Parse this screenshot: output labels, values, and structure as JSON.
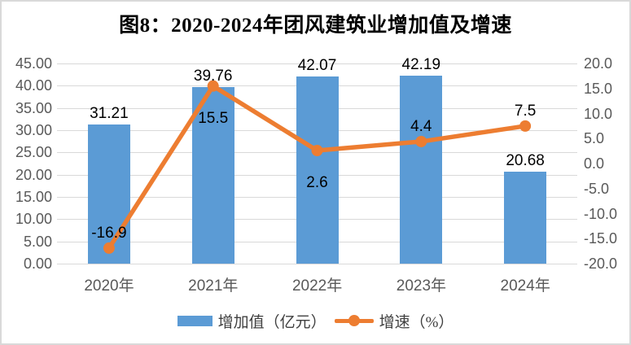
{
  "title": "图8：2020-2024年团风建筑业增加值及增速",
  "chart_data": {
    "type": "combo-bar-line",
    "categories": [
      "2020年",
      "2021年",
      "2022年",
      "2023年",
      "2024年"
    ],
    "series": [
      {
        "name": "增加值（亿元）",
        "chart_type": "bar",
        "axis": "left",
        "color": "#5B9BD5",
        "values": [
          31.21,
          39.76,
          42.07,
          42.19,
          20.68
        ],
        "labels": [
          "31.21",
          "39.76",
          "42.07",
          "42.19",
          "20.68"
        ]
      },
      {
        "name": "增速（%）",
        "chart_type": "line",
        "axis": "right",
        "color": "#ED7D31",
        "values": [
          -16.9,
          15.5,
          2.6,
          4.4,
          7.5
        ],
        "labels": [
          "-16.9",
          "15.5",
          "2.6",
          "4.4",
          "7.5"
        ],
        "label_placement": [
          "above",
          "below",
          "below",
          "above",
          "above"
        ]
      }
    ],
    "left_axis": {
      "min": 0,
      "max": 45,
      "step": 5,
      "ticks": [
        "45.00",
        "40.00",
        "35.00",
        "30.00",
        "25.00",
        "20.00",
        "15.00",
        "10.00",
        "5.00",
        "0.00"
      ]
    },
    "right_axis": {
      "min": -20,
      "max": 20,
      "step": 5,
      "ticks": [
        "20.0",
        "15.0",
        "10.0",
        "5.0",
        "0.0",
        "-5.0",
        "-10.0",
        "-15.0",
        "-20.0"
      ]
    },
    "grid": true,
    "legend_position": "bottom",
    "colors": {
      "gridline": "#D9D9D9",
      "axis_text": "#595959",
      "data_label_text": "#000000",
      "legend_text": "#404040",
      "frame_border": "#D9D9D9",
      "background": "#FFFFFF"
    }
  }
}
